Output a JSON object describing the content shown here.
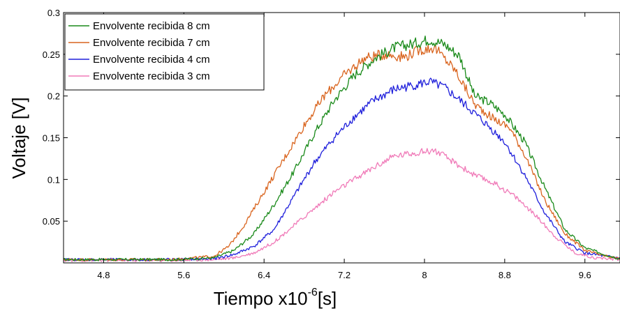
{
  "chart_data": {
    "type": "line",
    "xlabel": "Tiempo x10",
    "xlabel_sup": "-6",
    "xlabel_unit": "[s]",
    "ylabel": "Voltaje [V]",
    "xlim": [
      4.4,
      9.95
    ],
    "ylim": [
      0,
      0.3
    ],
    "x_ticks": [
      4.8,
      5.6,
      6.4,
      7.2,
      8,
      8.8,
      9.6
    ],
    "x_tick_labels": [
      "4.8",
      "5.6",
      "6.4",
      "7.2",
      "8",
      "8.8",
      "9.6"
    ],
    "y_ticks": [
      0.05,
      0.1,
      0.15,
      0.2,
      0.25,
      0.3
    ],
    "y_tick_labels": [
      "0.05",
      "0.1",
      "0.15",
      "0.2",
      "0.25",
      "0.3"
    ],
    "grid": false,
    "legend_position": "top-left",
    "series": [
      {
        "name": "Envolvente recibida 8 cm",
        "color": "#1a8a1a",
        "x": [
          4.4,
          5.0,
          5.5,
          5.9,
          6.1,
          6.3,
          6.5,
          6.7,
          6.9,
          7.1,
          7.3,
          7.5,
          7.7,
          7.9,
          8.05,
          8.2,
          8.35,
          8.5,
          8.65,
          8.8,
          9.0,
          9.2,
          9.4,
          9.6,
          9.8,
          9.95
        ],
        "y": [
          0.004,
          0.004,
          0.004,
          0.006,
          0.015,
          0.035,
          0.07,
          0.11,
          0.155,
          0.195,
          0.225,
          0.245,
          0.258,
          0.263,
          0.268,
          0.262,
          0.248,
          0.2,
          0.192,
          0.178,
          0.145,
          0.09,
          0.04,
          0.018,
          0.01,
          0.005
        ]
      },
      {
        "name": "Envolvente recibida 7 cm",
        "color": "#d9641e",
        "x": [
          4.4,
          5.0,
          5.5,
          5.9,
          6.05,
          6.2,
          6.4,
          6.6,
          6.8,
          7.0,
          7.2,
          7.4,
          7.6,
          7.8,
          7.95,
          8.1,
          8.3,
          8.5,
          8.7,
          8.85,
          9.0,
          9.2,
          9.4,
          9.6,
          9.8,
          9.95
        ],
        "y": [
          0.004,
          0.004,
          0.004,
          0.008,
          0.02,
          0.045,
          0.085,
          0.125,
          0.165,
          0.2,
          0.225,
          0.245,
          0.25,
          0.247,
          0.255,
          0.258,
          0.232,
          0.19,
          0.172,
          0.162,
          0.13,
          0.075,
          0.035,
          0.015,
          0.008,
          0.005
        ]
      },
      {
        "name": "Envolvente recibida 4 cm",
        "color": "#1f1fdb",
        "x": [
          4.4,
          5.0,
          5.5,
          5.9,
          6.1,
          6.3,
          6.5,
          6.7,
          6.9,
          7.1,
          7.3,
          7.5,
          7.7,
          7.9,
          8.05,
          8.2,
          8.4,
          8.6,
          8.8,
          9.0,
          9.2,
          9.4,
          9.6,
          9.8,
          9.95
        ],
        "y": [
          0.004,
          0.004,
          0.004,
          0.005,
          0.01,
          0.02,
          0.04,
          0.08,
          0.12,
          0.15,
          0.175,
          0.195,
          0.208,
          0.213,
          0.217,
          0.21,
          0.19,
          0.168,
          0.145,
          0.105,
          0.06,
          0.025,
          0.012,
          0.008,
          0.006
        ]
      },
      {
        "name": "Envolvente recibida 3 cm",
        "color": "#f07ab8",
        "x": [
          4.4,
          5.0,
          5.5,
          5.9,
          6.1,
          6.3,
          6.5,
          6.7,
          6.9,
          7.1,
          7.3,
          7.5,
          7.7,
          7.9,
          8.1,
          8.3,
          8.5,
          8.7,
          8.9,
          9.1,
          9.3,
          9.5,
          9.7,
          9.95
        ],
        "y": [
          0.003,
          0.003,
          0.003,
          0.004,
          0.006,
          0.012,
          0.025,
          0.045,
          0.065,
          0.085,
          0.1,
          0.115,
          0.128,
          0.132,
          0.135,
          0.12,
          0.105,
          0.095,
          0.08,
          0.058,
          0.032,
          0.012,
          0.006,
          0.004
        ]
      }
    ]
  }
}
